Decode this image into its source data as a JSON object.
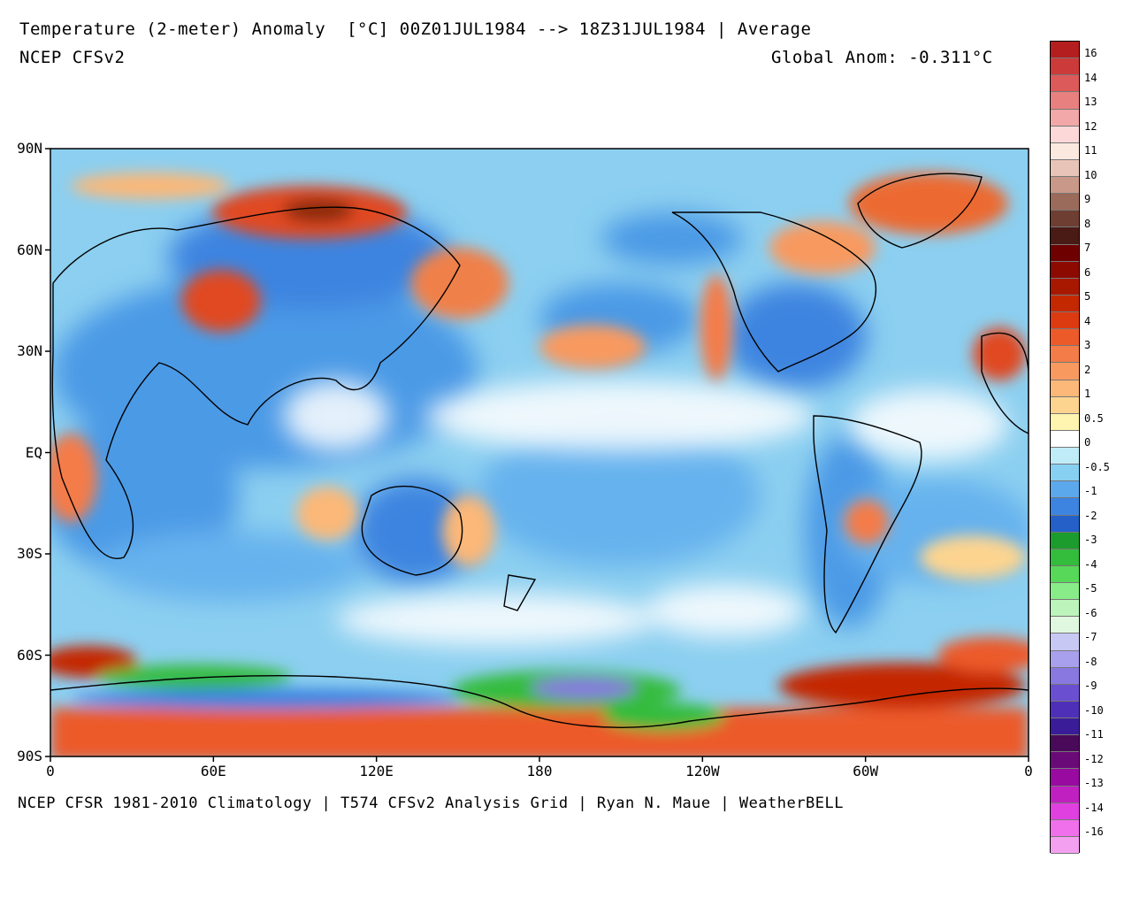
{
  "header": {
    "title": "Temperature (2-meter) Anomaly  [°C] 00Z01JUL1984 --> 18Z31JUL1984 | Average",
    "source": "NCEP CFSv2",
    "global_anom": "Global Anom: -0.311°C"
  },
  "footer": {
    "credits": "NCEP CFSR 1981-2010 Climatology | T574 CFSv2 Analysis Grid | Ryan N. Maue | WeatherBELL"
  },
  "axes": {
    "lat_labels": [
      "90N",
      "60N",
      "30N",
      "EQ",
      "30S",
      "60S",
      "90S"
    ],
    "lon_labels": [
      "0",
      "60E",
      "120E",
      "180",
      "120W",
      "60W",
      "0"
    ]
  },
  "colorbar": {
    "labels": [
      "16",
      "14",
      "13",
      "12",
      "11",
      "10",
      "9",
      "8",
      "7",
      "6",
      "5",
      "4",
      "3",
      "2",
      "1",
      "0.5",
      "0",
      "-0.5",
      "-1",
      "-2",
      "-3",
      "-4",
      "-5",
      "-6",
      "-7",
      "-8",
      "-9",
      "-10",
      "-11",
      "-12",
      "-13",
      "-14",
      "-16"
    ],
    "colors": [
      "#b41e1e",
      "#cc3a3a",
      "#dc5a5a",
      "#e88080",
      "#f2a8a8",
      "#fcd8d8",
      "#fbe9e0",
      "#e8c4b8",
      "#c89888",
      "#9a6a5a",
      "#6e3e32",
      "#4a1a14",
      "#6e0000",
      "#8c0a00",
      "#a81800",
      "#c42800",
      "#dc3a10",
      "#ec5a2a",
      "#f47c48",
      "#f89a60",
      "#fbb878",
      "#fcd490",
      "#fff4b0",
      "#ffffff",
      "#c0ecf8",
      "#88d0f2",
      "#5ca8ec",
      "#3c84e0",
      "#2460c8",
      "#1c9c2c",
      "#34bc3c",
      "#58d858",
      "#88ec88",
      "#bcf4bc",
      "#e0f8e0",
      "#c8c8f4",
      "#a8a0ec",
      "#8878e0",
      "#6a50d0",
      "#4e30b8",
      "#3a1c98",
      "#4a0a5a",
      "#6a0a78",
      "#980aa0",
      "#c020c0",
      "#e040e0",
      "#f070ec",
      "#f4a0f0"
    ]
  },
  "map": {
    "title_region": "Global 2-m temperature anomaly map",
    "anomaly_regions": [
      {
        "name": "W Siberia",
        "lat": 72,
        "lon": 95,
        "anom": 6
      },
      {
        "name": "Caspian",
        "lat": 44,
        "lon": 55,
        "anom": 3
      },
      {
        "name": "Greenland",
        "lat": 72,
        "lon": -40,
        "anom": 3
      },
      {
        "name": "Antarctica E",
        "lat": -72,
        "lon": -155,
        "anom": -8
      },
      {
        "name": "Antarctic Peninsula",
        "lat": -68,
        "lon": -50,
        "anom": 5
      }
    ]
  }
}
